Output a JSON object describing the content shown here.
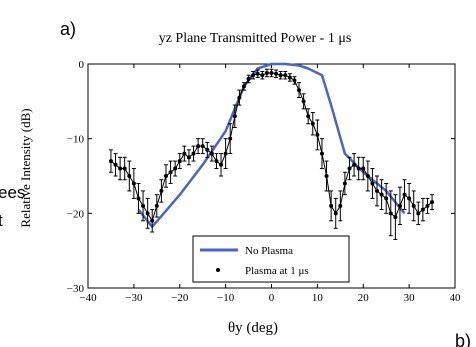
{
  "panel_label": "a)",
  "next_panel_label": "b)",
  "side_text_fragments": [
    "ees",
    "t"
  ],
  "colors": {
    "no_plasma": "#4a64c8",
    "plasma": "#000000",
    "axes": "#000000"
  },
  "chart_data": {
    "type": "line",
    "title": "yz Plane Transmitted Power - 1 μs",
    "xlabel": "θy (deg)",
    "ylabel": "Relative Intensity (dB)",
    "xlim": [
      -40,
      40
    ],
    "ylim": [
      -30,
      0
    ],
    "x_ticks": [
      -40,
      -30,
      -20,
      -10,
      0,
      10,
      20,
      30,
      40
    ],
    "x_tick_labels": [
      "−40",
      "−30",
      "−20",
      "−10",
      "0",
      "10",
      "20",
      "30",
      "40"
    ],
    "y_ticks": [
      0,
      -10,
      -20,
      -30
    ],
    "y_tick_labels": [
      "0",
      "−10",
      "−20",
      "−30"
    ],
    "grid": false,
    "legend": {
      "placement": "bottom-center",
      "entries": [
        "No Plasma",
        "Plasma at 1 μs"
      ]
    },
    "series": [
      {
        "name": "No Plasma",
        "style": "line",
        "x": [
          -29,
          -26,
          -20,
          -15,
          -10,
          -6,
          -3,
          0,
          3,
          6,
          8,
          11,
          13,
          16,
          20,
          25,
          29
        ],
        "y": [
          -19.5,
          -21.8,
          -17.5,
          -13.5,
          -9,
          -3,
          -0.6,
          0,
          0,
          -0.2,
          -0.6,
          -1.5,
          -5.5,
          -12,
          -14.5,
          -17,
          -20
        ]
      },
      {
        "name": "Plasma at 1 μs",
        "style": "markers-errorbars",
        "x": [
          -35,
          -34,
          -33,
          -32,
          -31,
          -30,
          -29,
          -28,
          -27,
          -26,
          -25,
          -24,
          -23,
          -22,
          -21,
          -20,
          -19,
          -18,
          -17,
          -16,
          -15,
          -14,
          -13,
          -12,
          -11,
          -10,
          -9,
          -8,
          -7,
          -6,
          -5,
          -4,
          -3,
          -2,
          -1,
          0,
          1,
          2,
          3,
          4,
          5,
          6,
          7,
          8,
          9,
          10,
          11,
          12,
          13,
          14,
          15,
          16,
          17,
          18,
          19,
          20,
          21,
          22,
          23,
          24,
          25,
          26,
          27,
          28,
          29,
          30,
          31,
          32,
          33,
          34,
          35
        ],
        "y": [
          -13,
          -13.5,
          -14,
          -14,
          -15,
          -16,
          -18,
          -19,
          -20,
          -21,
          -19,
          -17,
          -15,
          -14.5,
          -14,
          -13,
          -12,
          -12.5,
          -12,
          -11,
          -11,
          -11.5,
          -12,
          -13,
          -13.5,
          -12,
          -10,
          -7,
          -4.5,
          -3,
          -2,
          -1.5,
          -1.3,
          -1.5,
          -1.2,
          -1.2,
          -1.3,
          -1.5,
          -1.5,
          -1.8,
          -2.2,
          -3.5,
          -5,
          -7,
          -8,
          -9.5,
          -12,
          -15,
          -19,
          -20,
          -19,
          -16,
          -14,
          -13.5,
          -14,
          -14,
          -15,
          -16,
          -17,
          -17.5,
          -18,
          -20,
          -20.5,
          -19,
          -17.5,
          -18,
          -19,
          -20,
          -19.5,
          -19,
          -18.5
        ],
        "err": [
          1.5,
          1.5,
          1.5,
          1.5,
          2,
          2,
          2,
          2,
          2,
          1.5,
          1.5,
          1.5,
          1.5,
          1.5,
          1,
          1,
          1,
          1,
          1,
          1,
          1,
          1,
          1,
          1,
          1.5,
          2,
          2,
          1.5,
          1,
          0.5,
          0.5,
          0.5,
          0.5,
          0.5,
          0.5,
          0.5,
          0.5,
          0.5,
          0.5,
          0.5,
          0.5,
          1,
          1,
          1,
          1.5,
          2,
          2,
          2,
          2,
          2,
          2,
          1.5,
          1.5,
          1.5,
          1.5,
          1.5,
          2,
          2,
          2,
          2,
          2,
          3,
          3,
          2.5,
          2,
          2,
          2,
          1.5,
          1.5,
          1,
          1
        ]
      }
    ]
  }
}
